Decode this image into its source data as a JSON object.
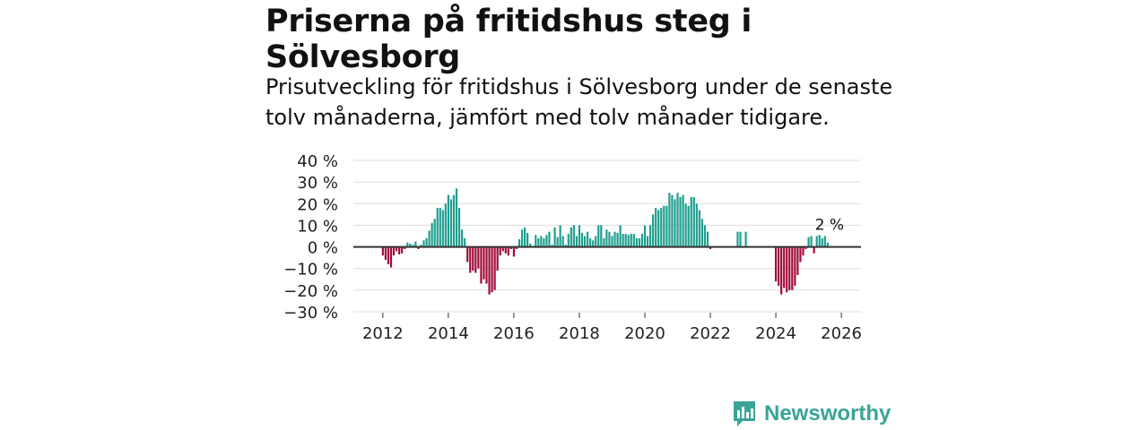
{
  "header": {
    "title": "Priserna på fritidshus steg i Sölvesborg",
    "subtitle": "Prisutveckling för fritidshus i Sölvesborg under de senaste tolv månaderna, jämfört med tolv månader tidigare."
  },
  "branding": {
    "name": "Newsworthy",
    "icon": "newsworthy-logo-icon"
  },
  "colors": {
    "positive": "#1f9e8f",
    "negative": "#a10c3a",
    "grid": "#dddddd",
    "zero": "#333333",
    "brand": "#3aa597"
  },
  "chart_data": {
    "type": "bar",
    "title": "Priserna på fritidshus steg i Sölvesborg",
    "ylim": [
      -30,
      40
    ],
    "yticks": [
      40,
      30,
      20,
      10,
      0,
      -10,
      -20,
      -30
    ],
    "ytick_labels": [
      "40 %",
      "30 %",
      "20 %",
      "10 %",
      "0 %",
      "−10 %",
      "−20 %",
      "−30 %"
    ],
    "xlim": [
      2011.1,
      2026.6
    ],
    "xticks": [
      "2012",
      "2014",
      "2016",
      "2018",
      "2020",
      "2022",
      "2024",
      "2026"
    ],
    "annotation": "2 %",
    "start": "2012-01",
    "series": [
      {
        "name": "Prisutveckling",
        "unit": "%",
        "values": [
          -4,
          -6,
          -8,
          -9.5,
          -4,
          -2,
          -3.5,
          -3,
          -1,
          2,
          1.5,
          1,
          2.5,
          -1,
          1,
          3,
          4,
          7.5,
          11,
          13,
          18,
          18,
          17,
          20,
          24,
          22,
          24,
          27,
          18,
          8,
          4,
          -7,
          -12,
          -11,
          -12,
          -10,
          -17,
          -15,
          -17,
          -22,
          -21,
          -20,
          -11,
          -4,
          -2,
          -3,
          -4,
          -1,
          -4.5,
          -1,
          3.5,
          8,
          9,
          6.5,
          1.5,
          0.5,
          5.5,
          4,
          5,
          4,
          5.5,
          7,
          1,
          9,
          4.5,
          10,
          5,
          1,
          6,
          9,
          10,
          5,
          10,
          6.5,
          5,
          7,
          4,
          3,
          5,
          10,
          10,
          4,
          8,
          7,
          5,
          7,
          6.5,
          10,
          6,
          6,
          5.5,
          6,
          6,
          4,
          4,
          6,
          10,
          5,
          10,
          15,
          18,
          17,
          18,
          19,
          19,
          25,
          24,
          22,
          25,
          23,
          24,
          20,
          19,
          23,
          23,
          20,
          17,
          13,
          10,
          7,
          -1,
          null,
          null,
          null,
          null,
          null,
          null,
          null,
          null,
          null,
          7,
          7,
          null,
          7,
          null,
          null,
          null,
          null,
          null,
          null,
          null,
          null,
          null,
          null,
          -16,
          -18,
          -22,
          -19,
          -21,
          -20,
          -20,
          -18,
          -13,
          -7,
          -4,
          -1,
          4.5,
          5,
          -3,
          5,
          5.5,
          4,
          5,
          2
        ]
      }
    ]
  }
}
